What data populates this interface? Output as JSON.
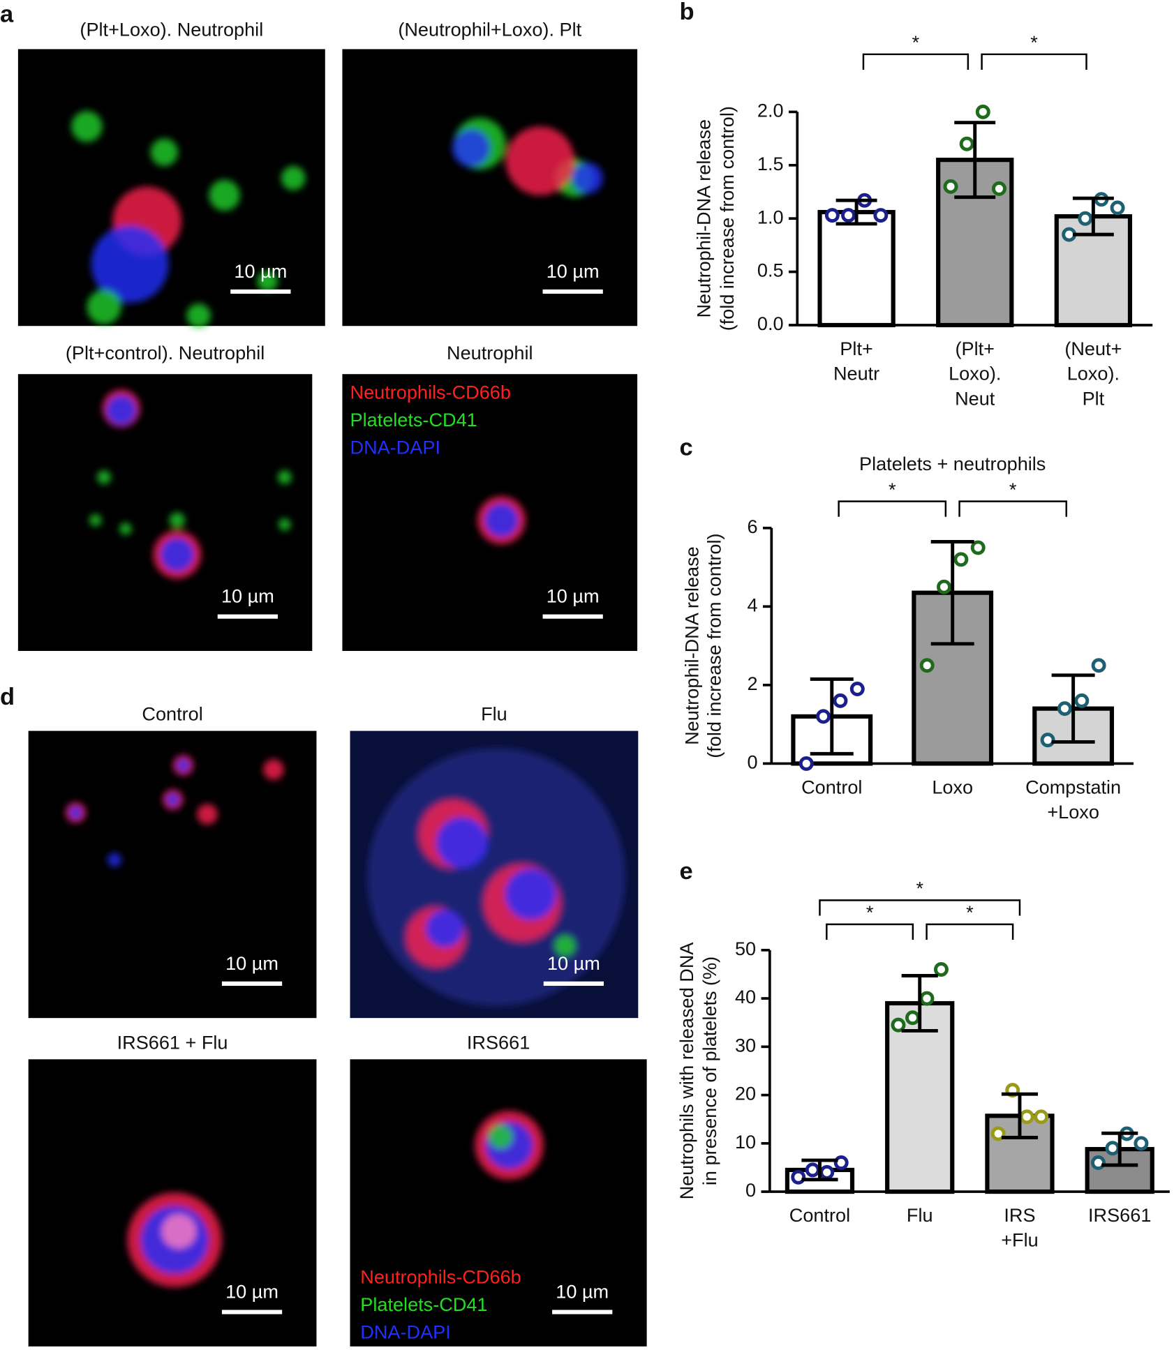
{
  "figure_a": {
    "panel": "a",
    "images": [
      {
        "title": "(Plt+Loxo). Neutrophil",
        "scale_bar": "10 µm"
      },
      {
        "title": "(Neutrophil+Loxo). Plt",
        "scale_bar": "10 µm"
      },
      {
        "title": "(Plt+control). Neutrophil",
        "scale_bar": "10 µm"
      },
      {
        "title": "Neutrophil",
        "scale_bar": "10 µm"
      }
    ],
    "legend": [
      "Neutrophils-CD66b",
      "Platelets-CD41",
      "DNA-DAPI"
    ]
  },
  "figure_d": {
    "panel": "d",
    "images": [
      {
        "title": "Control",
        "scale_bar": "10 µm"
      },
      {
        "title": "Flu",
        "scale_bar": "10 µm"
      },
      {
        "title": "IRS661 + Flu",
        "scale_bar": "10 µm"
      },
      {
        "title": "IRS661",
        "scale_bar": "10 µm"
      }
    ],
    "legend": [
      "Neutrophils-CD66b",
      "Platelets-CD41",
      "DNA-DAPI"
    ]
  },
  "chart_data": [
    {
      "type": "bar",
      "panel": "b",
      "ylabel": [
        "Neutrophil-DNA release",
        "(fold increase from control)"
      ],
      "categories": [
        [
          "Plt+",
          "Neutr"
        ],
        [
          "(Plt+",
          "Loxo).",
          "Neut"
        ],
        [
          "(Neut+",
          "Loxo).",
          "Plt"
        ]
      ],
      "values": [
        1.06,
        1.55,
        1.02
      ],
      "errors": [
        0.11,
        0.35,
        0.17
      ],
      "points": [
        [
          1.03,
          1.03,
          1.17,
          1.03
        ],
        [
          1.3,
          1.7,
          2.0,
          1.28
        ],
        [
          0.85,
          1.0,
          1.18,
          1.1
        ]
      ],
      "bar_colors": [
        "#ffffff",
        "#9b9b9b",
        "#d4d4d4"
      ],
      "point_colors": [
        "#1a1f8c",
        "#1e6b1e",
        "#1d5f73"
      ],
      "ylim": [
        0,
        2
      ],
      "yticks": [
        {
          "value": 0,
          "label": "0.0"
        },
        {
          "value": 0.5,
          "label": "0.5"
        },
        {
          "value": 1,
          "label": "1.0"
        },
        {
          "value": 1.5,
          "label": "1.5"
        },
        {
          "value": 2,
          "label": "2.0"
        }
      ],
      "significance": [
        {
          "from": 0,
          "to": 1,
          "label": "*"
        },
        {
          "from": 1,
          "to": 2,
          "label": "*"
        }
      ]
    },
    {
      "type": "bar",
      "panel": "c",
      "title": "Platelets + neutrophils",
      "ylabel": [
        "Neutrophil-DNA release",
        "(fold increase from control)"
      ],
      "categories": [
        [
          "Control"
        ],
        [
          "Loxo"
        ],
        [
          "Compstatin",
          "+Loxo"
        ]
      ],
      "values": [
        1.2,
        4.35,
        1.4
      ],
      "errors": [
        0.95,
        1.3,
        0.85
      ],
      "points": [
        [
          0,
          1.2,
          1.6,
          1.9
        ],
        [
          2.5,
          4.5,
          5.2,
          5.5
        ],
        [
          0.6,
          1.4,
          1.6,
          2.5
        ]
      ],
      "bar_colors": [
        "#ffffff",
        "#9b9b9b",
        "#d4d4d4"
      ],
      "point_colors": [
        "#1a1f8c",
        "#1e6b1e",
        "#1d5f73"
      ],
      "ylim": [
        0,
        6
      ],
      "yticks": [
        0,
        2,
        4,
        6
      ],
      "significance": [
        {
          "from": 0,
          "to": 1,
          "label": "*"
        },
        {
          "from": 1,
          "to": 2,
          "label": "*"
        }
      ]
    },
    {
      "type": "bar",
      "panel": "e",
      "ylabel": [
        "Neutrophils with released DNA",
        "in presence of platelets (%)"
      ],
      "categories": [
        [
          "Control"
        ],
        [
          "Flu"
        ],
        [
          "IRS",
          "+Flu"
        ],
        [
          "IRS661"
        ]
      ],
      "values": [
        4.5,
        39,
        15.7,
        8.8
      ],
      "errors": [
        2,
        5.7,
        4.5,
        3.3
      ],
      "points": [
        [
          3,
          4.5,
          4,
          6
        ],
        [
          34.5,
          36,
          40,
          46
        ],
        [
          12,
          21,
          15.5,
          15.5
        ],
        [
          6,
          9,
          12,
          10
        ]
      ],
      "bar_colors": [
        "#ffffff",
        "#dcdcdc",
        "#a6a6a6",
        "#8c8c8c"
      ],
      "point_colors": [
        "#1a1f8c",
        "#1e6b1e",
        "#9a9a1a",
        "#1d5f73"
      ],
      "ylim": [
        0,
        50
      ],
      "yticks": [
        0,
        10,
        20,
        30,
        40,
        50
      ],
      "significance": [
        {
          "from": 0,
          "to": 1,
          "label": "*"
        },
        {
          "from": 1,
          "to": 2,
          "label": "*"
        },
        {
          "from": 0,
          "to": 2,
          "label": "*"
        }
      ]
    }
  ]
}
